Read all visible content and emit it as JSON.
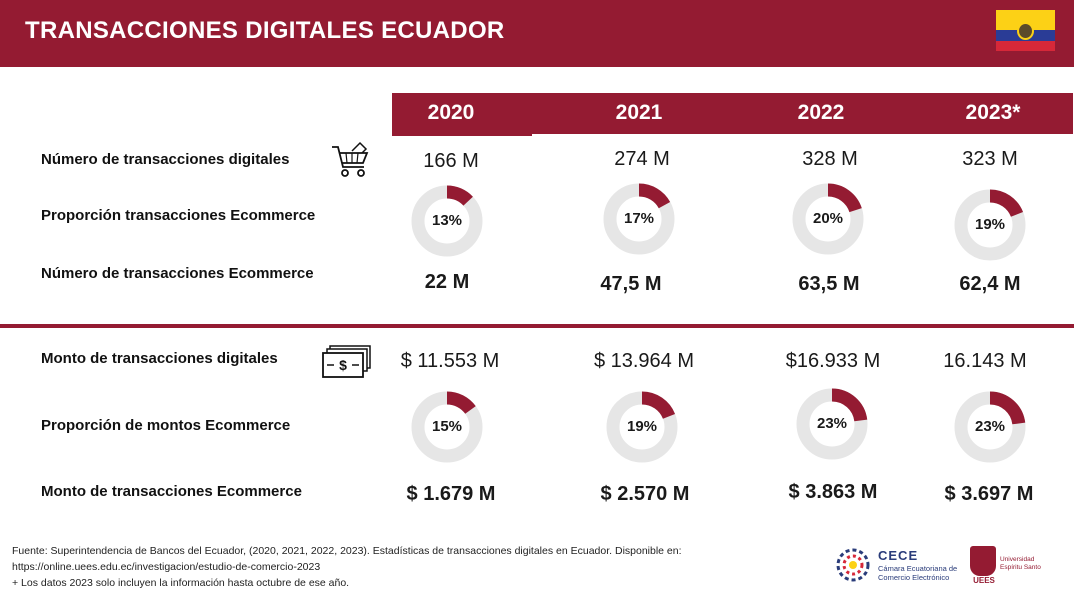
{
  "header": {
    "title": "TRANSACCIONES DIGITALES ECUADOR"
  },
  "colors": {
    "accent": "#941b32",
    "donut_track": "#e6e6e6",
    "text": "#1a1a1a"
  },
  "chart_data": {
    "type": "table",
    "years": [
      "2020",
      "2021",
      "2022",
      "2023*"
    ],
    "rows": [
      {
        "label": "Número de transacciones digitales",
        "values": [
          "166 M",
          "274 M",
          "328 M",
          "323 M"
        ],
        "icon": "shopping-cart-icon"
      },
      {
        "label": "Proporción transacciones Ecommerce",
        "values": [
          "13%",
          "17%",
          "20%",
          "19%"
        ],
        "percent": [
          13,
          17,
          20,
          19
        ]
      },
      {
        "label": "Número de transacciones Ecommerce",
        "values": [
          "22 M",
          "47,5 M",
          "63,5 M",
          "62,4 M"
        ]
      },
      {
        "label": "Monto de transacciones digitales",
        "values": [
          "$ 11.553 M",
          "$ 13.964 M",
          "$16.933 M",
          "16.143 M"
        ],
        "icon": "cash-icon"
      },
      {
        "label": "Proporción de montos Ecommerce",
        "values": [
          "15%",
          "19%",
          "23%",
          "23%"
        ],
        "percent": [
          15,
          19,
          23,
          23
        ]
      },
      {
        "label": "Monto de transacciones Ecommerce",
        "values": [
          "$ 1.679 M",
          "$ 2.570 M",
          "$ 3.863 M",
          "$ 3.697 M"
        ]
      }
    ]
  },
  "footer": {
    "line1": "Fuente: Superintendencia de Bancos del Ecuador, (2020, 2021, 2022, 2023). Estadísticas de transacciones digitales en Ecuador. Disponible en:",
    "line2": "https://online.uees.edu.ec/investigacion/estudio-de-comercio-2023",
    "line3": "+ Los datos 2023 solo incluyen la información hasta octubre de ese año."
  },
  "logos": {
    "cece_title": "CECE",
    "cece_sub1": "Cámara Ecuatoriana de",
    "cece_sub2": "Comercio Electrónico",
    "uees_text": "UEES",
    "uees_sub1": "Universidad",
    "uees_sub2": "Espíritu Santo"
  }
}
